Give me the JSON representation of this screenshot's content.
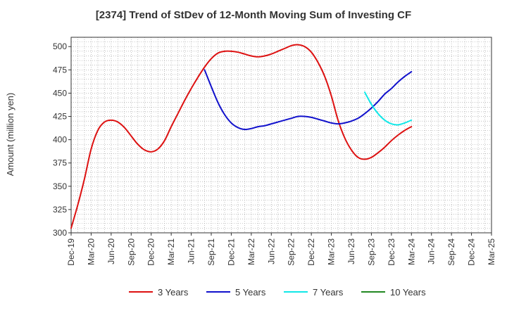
{
  "chart_data": {
    "type": "line",
    "title": "[2374]  Trend of StDev of 12-Month Moving Sum of Investing CF",
    "ylabel": "Amount (million yen)",
    "xlabel": "",
    "x_start": "Dec-19",
    "x_end": "Mar-25",
    "ylim": [
      300,
      510
    ],
    "yticks": [
      300,
      325,
      350,
      375,
      400,
      425,
      450,
      475,
      500
    ],
    "xtick_labels": [
      "Dec-19",
      "Mar-20",
      "Jun-20",
      "Sep-20",
      "Dec-20",
      "Mar-21",
      "Jun-21",
      "Sep-21",
      "Dec-21",
      "Mar-22",
      "Jun-22",
      "Sep-22",
      "Dec-22",
      "Mar-23",
      "Jun-23",
      "Sep-23",
      "Dec-23",
      "Mar-24",
      "Jun-24",
      "Sep-24",
      "Dec-24",
      "Mar-25"
    ],
    "grid": true,
    "legend_position": "bottom",
    "series": [
      {
        "name": "3 Years",
        "color": "#dd1111",
        "x": [
          "Dec-19",
          "Jan-20",
          "Feb-20",
          "Mar-20",
          "Apr-20",
          "May-20",
          "Jun-20",
          "Jul-20",
          "Aug-20",
          "Sep-20",
          "Oct-20",
          "Nov-20",
          "Dec-20",
          "Jan-21",
          "Feb-21",
          "Mar-21",
          "Apr-21",
          "May-21",
          "Jun-21",
          "Jul-21",
          "Aug-21",
          "Sep-21",
          "Oct-21",
          "Nov-21",
          "Dec-21",
          "Jan-22",
          "Feb-22",
          "Mar-22",
          "Apr-22",
          "May-22",
          "Jun-22",
          "Jul-22",
          "Aug-22",
          "Sep-22",
          "Oct-22",
          "Nov-22",
          "Dec-22",
          "Jan-23",
          "Feb-23",
          "Mar-23",
          "Apr-23",
          "May-23",
          "Jun-23",
          "Jul-23",
          "Aug-23",
          "Sep-23",
          "Oct-23",
          "Nov-23",
          "Dec-23",
          "Jan-24",
          "Feb-24",
          "Mar-24"
        ],
        "values": [
          305,
          330,
          358,
          390,
          410,
          419,
          421,
          419,
          413,
          404,
          395,
          389,
          387,
          390,
          399,
          414,
          428,
          442,
          455,
          467,
          478,
          487,
          493,
          495,
          495,
          494,
          492,
          490,
          489,
          490,
          492,
          495,
          498,
          501,
          502,
          500,
          494,
          483,
          468,
          447,
          421,
          402,
          389,
          381,
          379,
          381,
          386,
          392,
          399,
          405,
          410,
          414
        ]
      },
      {
        "name": "5 Years",
        "color": "#1111cc",
        "x": [
          "Aug-21",
          "Sep-21",
          "Oct-21",
          "Nov-21",
          "Dec-21",
          "Jan-22",
          "Feb-22",
          "Mar-22",
          "Apr-22",
          "May-22",
          "Jun-22",
          "Jul-22",
          "Aug-22",
          "Sep-22",
          "Oct-22",
          "Nov-22",
          "Dec-22",
          "Jan-23",
          "Feb-23",
          "Mar-23",
          "Apr-23",
          "May-23",
          "Jun-23",
          "Jul-23",
          "Aug-23",
          "Sep-23",
          "Oct-23",
          "Nov-23",
          "Dec-23",
          "Jan-24",
          "Feb-24",
          "Mar-24"
        ],
        "values": [
          475,
          457,
          440,
          427,
          418,
          413,
          411,
          412,
          414,
          415,
          417,
          419,
          421,
          423,
          425,
          425,
          424,
          422,
          420,
          418,
          417,
          418,
          420,
          423,
          428,
          434,
          441,
          449,
          455,
          462,
          468,
          473
        ]
      },
      {
        "name": "7 Years",
        "color": "#11e8e8",
        "x": [
          "Aug-23",
          "Sep-23",
          "Oct-23",
          "Nov-23",
          "Dec-23",
          "Jan-24",
          "Feb-24",
          "Mar-24"
        ],
        "values": [
          451,
          438,
          428,
          421,
          417,
          416,
          418,
          421
        ]
      },
      {
        "name": "10 Years",
        "color": "#228822",
        "x": [],
        "values": []
      }
    ]
  }
}
